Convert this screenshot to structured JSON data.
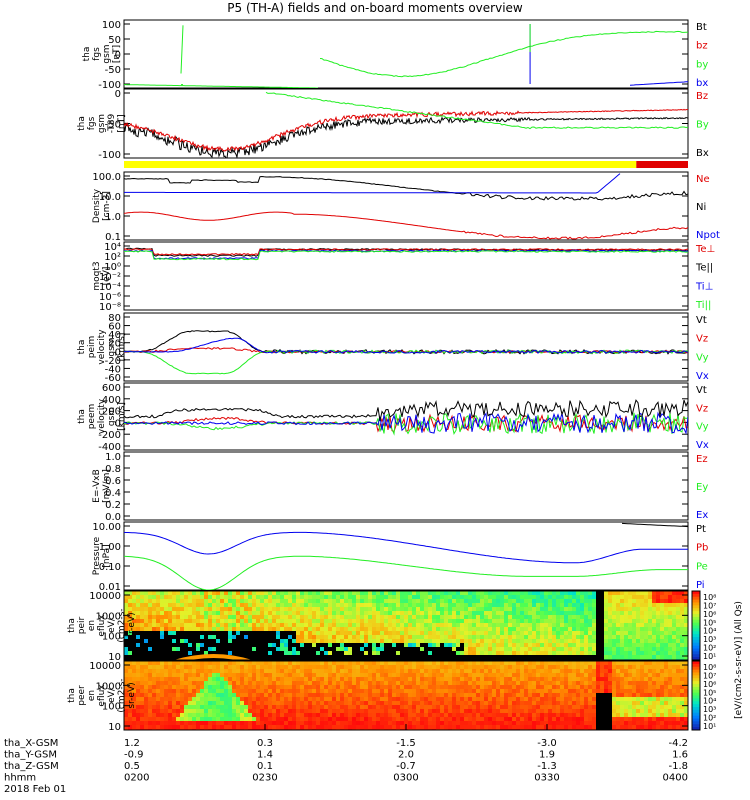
{
  "chart_data": {
    "type": "line",
    "title": "P5 (TH-A) fields and on-board moments overview",
    "date_label": "2018 Feb 01",
    "orbit_rows": [
      {
        "label": "tha_X-GSM",
        "values": [
          "1.2",
          "0.3",
          "-1.5",
          "-3.0",
          "-4.2"
        ]
      },
      {
        "label": "tha_Y-GSM",
        "values": [
          "-0.9",
          "1.4",
          "2.0",
          "1.9",
          "1.6"
        ]
      },
      {
        "label": "tha_Z-GSM",
        "values": [
          "0.5",
          "0.1",
          "-0.7",
          "-1.3",
          "-1.8"
        ]
      },
      {
        "label": "hhmm",
        "values": [
          "0200",
          "0230",
          "0300",
          "0330",
          "0400"
        ]
      }
    ],
    "time_range": [
      "0200",
      "0400"
    ],
    "colors": {
      "black": "#000000",
      "red": "#e00000",
      "green": "#22ee22",
      "blue": "#0000ee",
      "yellow": "#ffff00"
    },
    "panels": [
      {
        "id": "fgs",
        "ylabel_lines": [
          "tha",
          "fgs",
          "gsm",
          "[nT]"
        ],
        "ylim": [
          -100,
          100
        ],
        "ticks": [
          "100",
          "50",
          "0",
          "-50",
          "-100"
        ],
        "legend": [
          {
            "name": "Bt",
            "color": "#000000"
          },
          {
            "name": "bz",
            "color": "#e00000"
          },
          {
            "name": "by",
            "color": "#22ee22"
          },
          {
            "name": "bx",
            "color": "#0000ee"
          }
        ]
      },
      {
        "id": "fgs_gsm_t89",
        "ylabel_lines": [
          "tha",
          "fgs",
          "gsm",
          "-T89",
          "[nT]"
        ],
        "ylim": [
          -125,
          40
        ],
        "ticks": [
          "0",
          "-50",
          "-100"
        ],
        "legend": [
          {
            "name": "Bz",
            "color": "#e00000"
          },
          {
            "name": "By",
            "color": "#22ee22"
          },
          {
            "name": "Bx",
            "color": "#000000"
          }
        ]
      },
      {
        "id": "density",
        "ylabel_lines": [
          "Density",
          "[cm-3]"
        ],
        "ticks": [
          "100.0",
          "10.0",
          "1.0",
          "0.1"
        ],
        "legend": [
          {
            "name": "Ne",
            "color": "#e00000"
          },
          {
            "name": "Ni",
            "color": "#000000"
          },
          {
            "name": "Npot",
            "color": "#0000ee"
          }
        ]
      },
      {
        "id": "temperature",
        "ylabel_lines": [
          "moqt3",
          "[eV]"
        ],
        "ticks": [
          "10⁴",
          "10²",
          "10⁰",
          "10⁻²",
          "10⁻⁴",
          "10⁻⁶",
          "10⁻⁸"
        ],
        "legend": [
          {
            "name": "Te⊥",
            "color": "#e00000"
          },
          {
            "name": "Te||",
            "color": "#000000"
          },
          {
            "name": "Ti⊥",
            "color": "#0000ee"
          },
          {
            "name": "Ti||",
            "color": "#22ee22"
          }
        ]
      },
      {
        "id": "peim_velocity",
        "ylabel_lines": [
          "tha",
          "peim",
          "velocity",
          "gsm",
          "[km/s]"
        ],
        "ylim": [
          -60,
          80
        ],
        "ticks": [
          "80",
          "60",
          "40",
          "20",
          "0",
          "-20",
          "-40",
          "-60"
        ],
        "legend": [
          {
            "name": "Vt",
            "color": "#000000"
          },
          {
            "name": "Vz",
            "color": "#e00000"
          },
          {
            "name": "Vy",
            "color": "#22ee22"
          },
          {
            "name": "Vx",
            "color": "#0000ee"
          }
        ]
      },
      {
        "id": "peem_velocity",
        "ylabel_lines": [
          "tha",
          "peem",
          "velocity",
          "gsm",
          "[km/s]"
        ],
        "ylim": [
          -400,
          600
        ],
        "ticks": [
          "600",
          "400",
          "200",
          "0",
          "-200",
          "-400"
        ],
        "legend": [
          {
            "name": "Vt",
            "color": "#000000"
          },
          {
            "name": "Vz",
            "color": "#e00000"
          },
          {
            "name": "Vy",
            "color": "#22ee22"
          },
          {
            "name": "Vx",
            "color": "#0000ee"
          }
        ]
      },
      {
        "id": "efield",
        "ylabel_lines": [
          "E=-VxB",
          "[mV/m]"
        ],
        "ylim": [
          0,
          1
        ],
        "ticks": [
          "1.0",
          "0.8",
          "0.6",
          "0.4",
          "0.2",
          "0.0"
        ],
        "legend": [
          {
            "name": "Ez",
            "color": "#e00000"
          },
          {
            "name": "Ey",
            "color": "#22ee22"
          },
          {
            "name": "Ex",
            "color": "#0000ee"
          }
        ]
      },
      {
        "id": "pressure",
        "ylabel_lines": [
          "Pressure",
          "[nPa]"
        ],
        "ticks": [
          "10.00",
          "1.00",
          "0.10",
          "0.01"
        ],
        "legend": [
          {
            "name": "Pt",
            "color": "#000000"
          },
          {
            "name": "Pb",
            "color": "#e00000"
          },
          {
            "name": "Pe",
            "color": "#22ee22"
          },
          {
            "name": "Pi",
            "color": "#0000ee"
          }
        ]
      },
      {
        "id": "peir_spec",
        "ylabel_lines": [
          "tha",
          "peir",
          "en",
          "eflux",
          "eV/",
          "(cm2-s-",
          "sr-eV)"
        ],
        "ticks": [
          "10000",
          "1000",
          "100",
          "10"
        ],
        "colorbar_label": "[eV/(cm2-s-sr-eV)] (All Qs)",
        "colorbar_ticks": [
          "10⁸",
          "10⁷",
          "10⁶",
          "10⁵",
          "10⁴",
          "10³",
          "10²",
          "10¹"
        ]
      },
      {
        "id": "peer_spec",
        "ylabel_lines": [
          "tha",
          "peer",
          "en",
          "eflux",
          "eV/",
          "(cm2-s-",
          "sr-eV)"
        ],
        "ticks": [
          "10000",
          "1000",
          "100",
          "10"
        ],
        "colorbar_label": "[eV/(cm2-s-sr-eV)] (All Qs)",
        "colorbar_ticks": [
          "10⁸",
          "10⁷",
          "10⁶",
          "10⁵",
          "10⁴",
          "10³",
          "10²",
          "10¹"
        ]
      }
    ],
    "mode_bar": [
      {
        "from": "0200",
        "to": "0349",
        "color": "#ffff00"
      },
      {
        "from": "0349",
        "to": "0400",
        "color": "#e00000"
      }
    ]
  }
}
